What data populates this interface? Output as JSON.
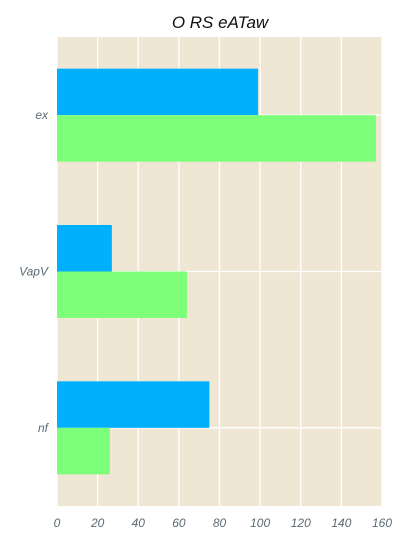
{
  "chart_data": {
    "type": "bar",
    "orientation": "horizontal",
    "title": "O RS eATaw",
    "xlabel": "",
    "ylabel": "",
    "categories": [
      "ex",
      "VapV",
      "nf"
    ],
    "series": [
      {
        "color": "#00b0ff",
        "values": [
          99,
          27,
          75
        ]
      },
      {
        "color": "#7dff7a",
        "values": [
          157,
          64,
          26
        ]
      }
    ],
    "xlim": [
      0,
      160
    ],
    "xticks": [
      0,
      20,
      40,
      60,
      80,
      100,
      120,
      140,
      160
    ],
    "grid": true,
    "legend": "none",
    "background": "#efe6d4"
  }
}
